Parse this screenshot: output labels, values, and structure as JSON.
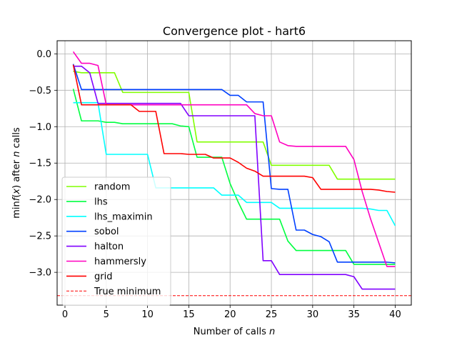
{
  "chart_data": {
    "type": "line",
    "title": "Convergence plot - hart6",
    "xlabel": "Number of calls n",
    "ylabel": "min f(x) after n calls",
    "xlim": [
      -0.95,
      41.95
    ],
    "ylim": [
      -3.45,
      0.18
    ],
    "xticks": [
      0,
      5,
      10,
      15,
      20,
      25,
      30,
      35,
      40
    ],
    "xtick_labels": [
      "0",
      "5",
      "10",
      "15",
      "20",
      "25",
      "30",
      "35",
      "40"
    ],
    "yticks": [
      0.0,
      -0.5,
      -1.0,
      -1.5,
      -2.0,
      -2.5,
      -3.0
    ],
    "ytick_labels": [
      "0.0",
      "−0.5",
      "−1.0",
      "−1.5",
      "−2.0",
      "−2.5",
      "−3.0"
    ],
    "grid": true,
    "legend_position": "lower-left",
    "x": [
      1,
      2,
      3,
      4,
      5,
      6,
      7,
      8,
      9,
      10,
      11,
      12,
      13,
      14,
      15,
      16,
      17,
      18,
      19,
      20,
      21,
      22,
      23,
      24,
      25,
      26,
      27,
      28,
      29,
      30,
      31,
      32,
      33,
      34,
      35,
      36,
      37,
      38,
      39,
      40
    ],
    "series": [
      {
        "name": "random",
        "color": "#80ff00",
        "style": "solid",
        "values": [
          -0.24,
          -0.26,
          -0.26,
          -0.26,
          -0.26,
          -0.26,
          -0.53,
          -0.53,
          -0.53,
          -0.53,
          -0.53,
          -0.53,
          -0.53,
          -0.53,
          -0.53,
          -1.21,
          -1.21,
          -1.21,
          -1.21,
          -1.21,
          -1.21,
          -1.21,
          -1.21,
          -1.21,
          -1.53,
          -1.53,
          -1.53,
          -1.53,
          -1.53,
          -1.53,
          -1.53,
          -1.53,
          -1.72,
          -1.72,
          -1.72,
          -1.72,
          -1.72,
          -1.72,
          -1.72,
          -1.72
        ]
      },
      {
        "name": "lhs",
        "color": "#00ff40",
        "style": "solid",
        "values": [
          -0.48,
          -0.92,
          -0.92,
          -0.92,
          -0.94,
          -0.94,
          -0.96,
          -0.96,
          -0.96,
          -0.96,
          -0.96,
          -0.96,
          -0.96,
          -0.99,
          -1.0,
          -1.42,
          -1.42,
          -1.42,
          -1.42,
          -1.78,
          -2.04,
          -2.27,
          -2.27,
          -2.27,
          -2.27,
          -2.27,
          -2.57,
          -2.7,
          -2.7,
          -2.7,
          -2.7,
          -2.7,
          -2.7,
          -2.7,
          -2.89,
          -2.89,
          -2.89,
          -2.89,
          -2.89,
          -2.89
        ]
      },
      {
        "name": "lhs_maximin",
        "color": "#00ffff",
        "style": "solid",
        "values": [
          -0.67,
          -0.67,
          -0.67,
          -0.67,
          -1.38,
          -1.38,
          -1.38,
          -1.38,
          -1.38,
          -1.38,
          -1.84,
          -1.84,
          -1.84,
          -1.84,
          -1.84,
          -1.84,
          -1.84,
          -1.84,
          -1.94,
          -1.94,
          -1.94,
          -2.04,
          -2.04,
          -2.04,
          -2.04,
          -2.12,
          -2.12,
          -2.12,
          -2.12,
          -2.12,
          -2.12,
          -2.12,
          -2.12,
          -2.12,
          -2.12,
          -2.12,
          -2.13,
          -2.15,
          -2.15,
          -2.36
        ]
      },
      {
        "name": "sobol",
        "color": "#0040ff",
        "style": "solid",
        "values": [
          -0.14,
          -0.49,
          -0.49,
          -0.49,
          -0.49,
          -0.49,
          -0.49,
          -0.49,
          -0.49,
          -0.49,
          -0.49,
          -0.49,
          -0.49,
          -0.49,
          -0.49,
          -0.49,
          -0.49,
          -0.49,
          -0.49,
          -0.57,
          -0.57,
          -0.66,
          -0.66,
          -0.66,
          -1.85,
          -1.86,
          -1.86,
          -2.42,
          -2.42,
          -2.48,
          -2.51,
          -2.58,
          -2.86,
          -2.86,
          -2.86,
          -2.86,
          -2.86,
          -2.86,
          -2.86,
          -2.87
        ]
      },
      {
        "name": "halton",
        "color": "#8000ff",
        "style": "solid",
        "values": [
          -0.17,
          -0.17,
          -0.26,
          -0.68,
          -0.68,
          -0.68,
          -0.68,
          -0.68,
          -0.68,
          -0.68,
          -0.68,
          -0.68,
          -0.68,
          -0.68,
          -0.85,
          -0.85,
          -0.85,
          -0.85,
          -0.85,
          -0.85,
          -0.85,
          -0.85,
          -0.85,
          -2.84,
          -2.84,
          -3.03,
          -3.03,
          -3.03,
          -3.03,
          -3.03,
          -3.03,
          -3.03,
          -3.03,
          -3.03,
          -3.06,
          -3.23,
          -3.23,
          -3.23,
          -3.23,
          -3.23
        ]
      },
      {
        "name": "hammersly",
        "color": "#ff00c0",
        "style": "solid",
        "values": [
          0.03,
          -0.13,
          -0.13,
          -0.16,
          -0.7,
          -0.7,
          -0.7,
          -0.7,
          -0.7,
          -0.7,
          -0.7,
          -0.7,
          -0.7,
          -0.7,
          -0.7,
          -0.7,
          -0.7,
          -0.7,
          -0.7,
          -0.7,
          -0.7,
          -0.7,
          -0.82,
          -0.85,
          -0.85,
          -1.21,
          -1.26,
          -1.27,
          -1.27,
          -1.27,
          -1.27,
          -1.27,
          -1.27,
          -1.27,
          -1.45,
          -1.89,
          -2.26,
          -2.59,
          -2.92,
          -2.92
        ]
      },
      {
        "name": "grid",
        "color": "#ff0000",
        "style": "solid",
        "values": [
          -0.15,
          -0.7,
          -0.7,
          -0.7,
          -0.7,
          -0.7,
          -0.7,
          -0.7,
          -0.79,
          -0.79,
          -0.79,
          -1.37,
          -1.37,
          -1.37,
          -1.38,
          -1.38,
          -1.38,
          -1.43,
          -1.43,
          -1.43,
          -1.49,
          -1.57,
          -1.61,
          -1.68,
          -1.68,
          -1.68,
          -1.68,
          -1.68,
          -1.68,
          -1.7,
          -1.86,
          -1.86,
          -1.86,
          -1.86,
          -1.86,
          -1.86,
          -1.86,
          -1.87,
          -1.89,
          -1.9
        ]
      },
      {
        "name": "True minimum",
        "color": "#ff0000",
        "style": "dashed",
        "constant": -3.32
      }
    ]
  }
}
